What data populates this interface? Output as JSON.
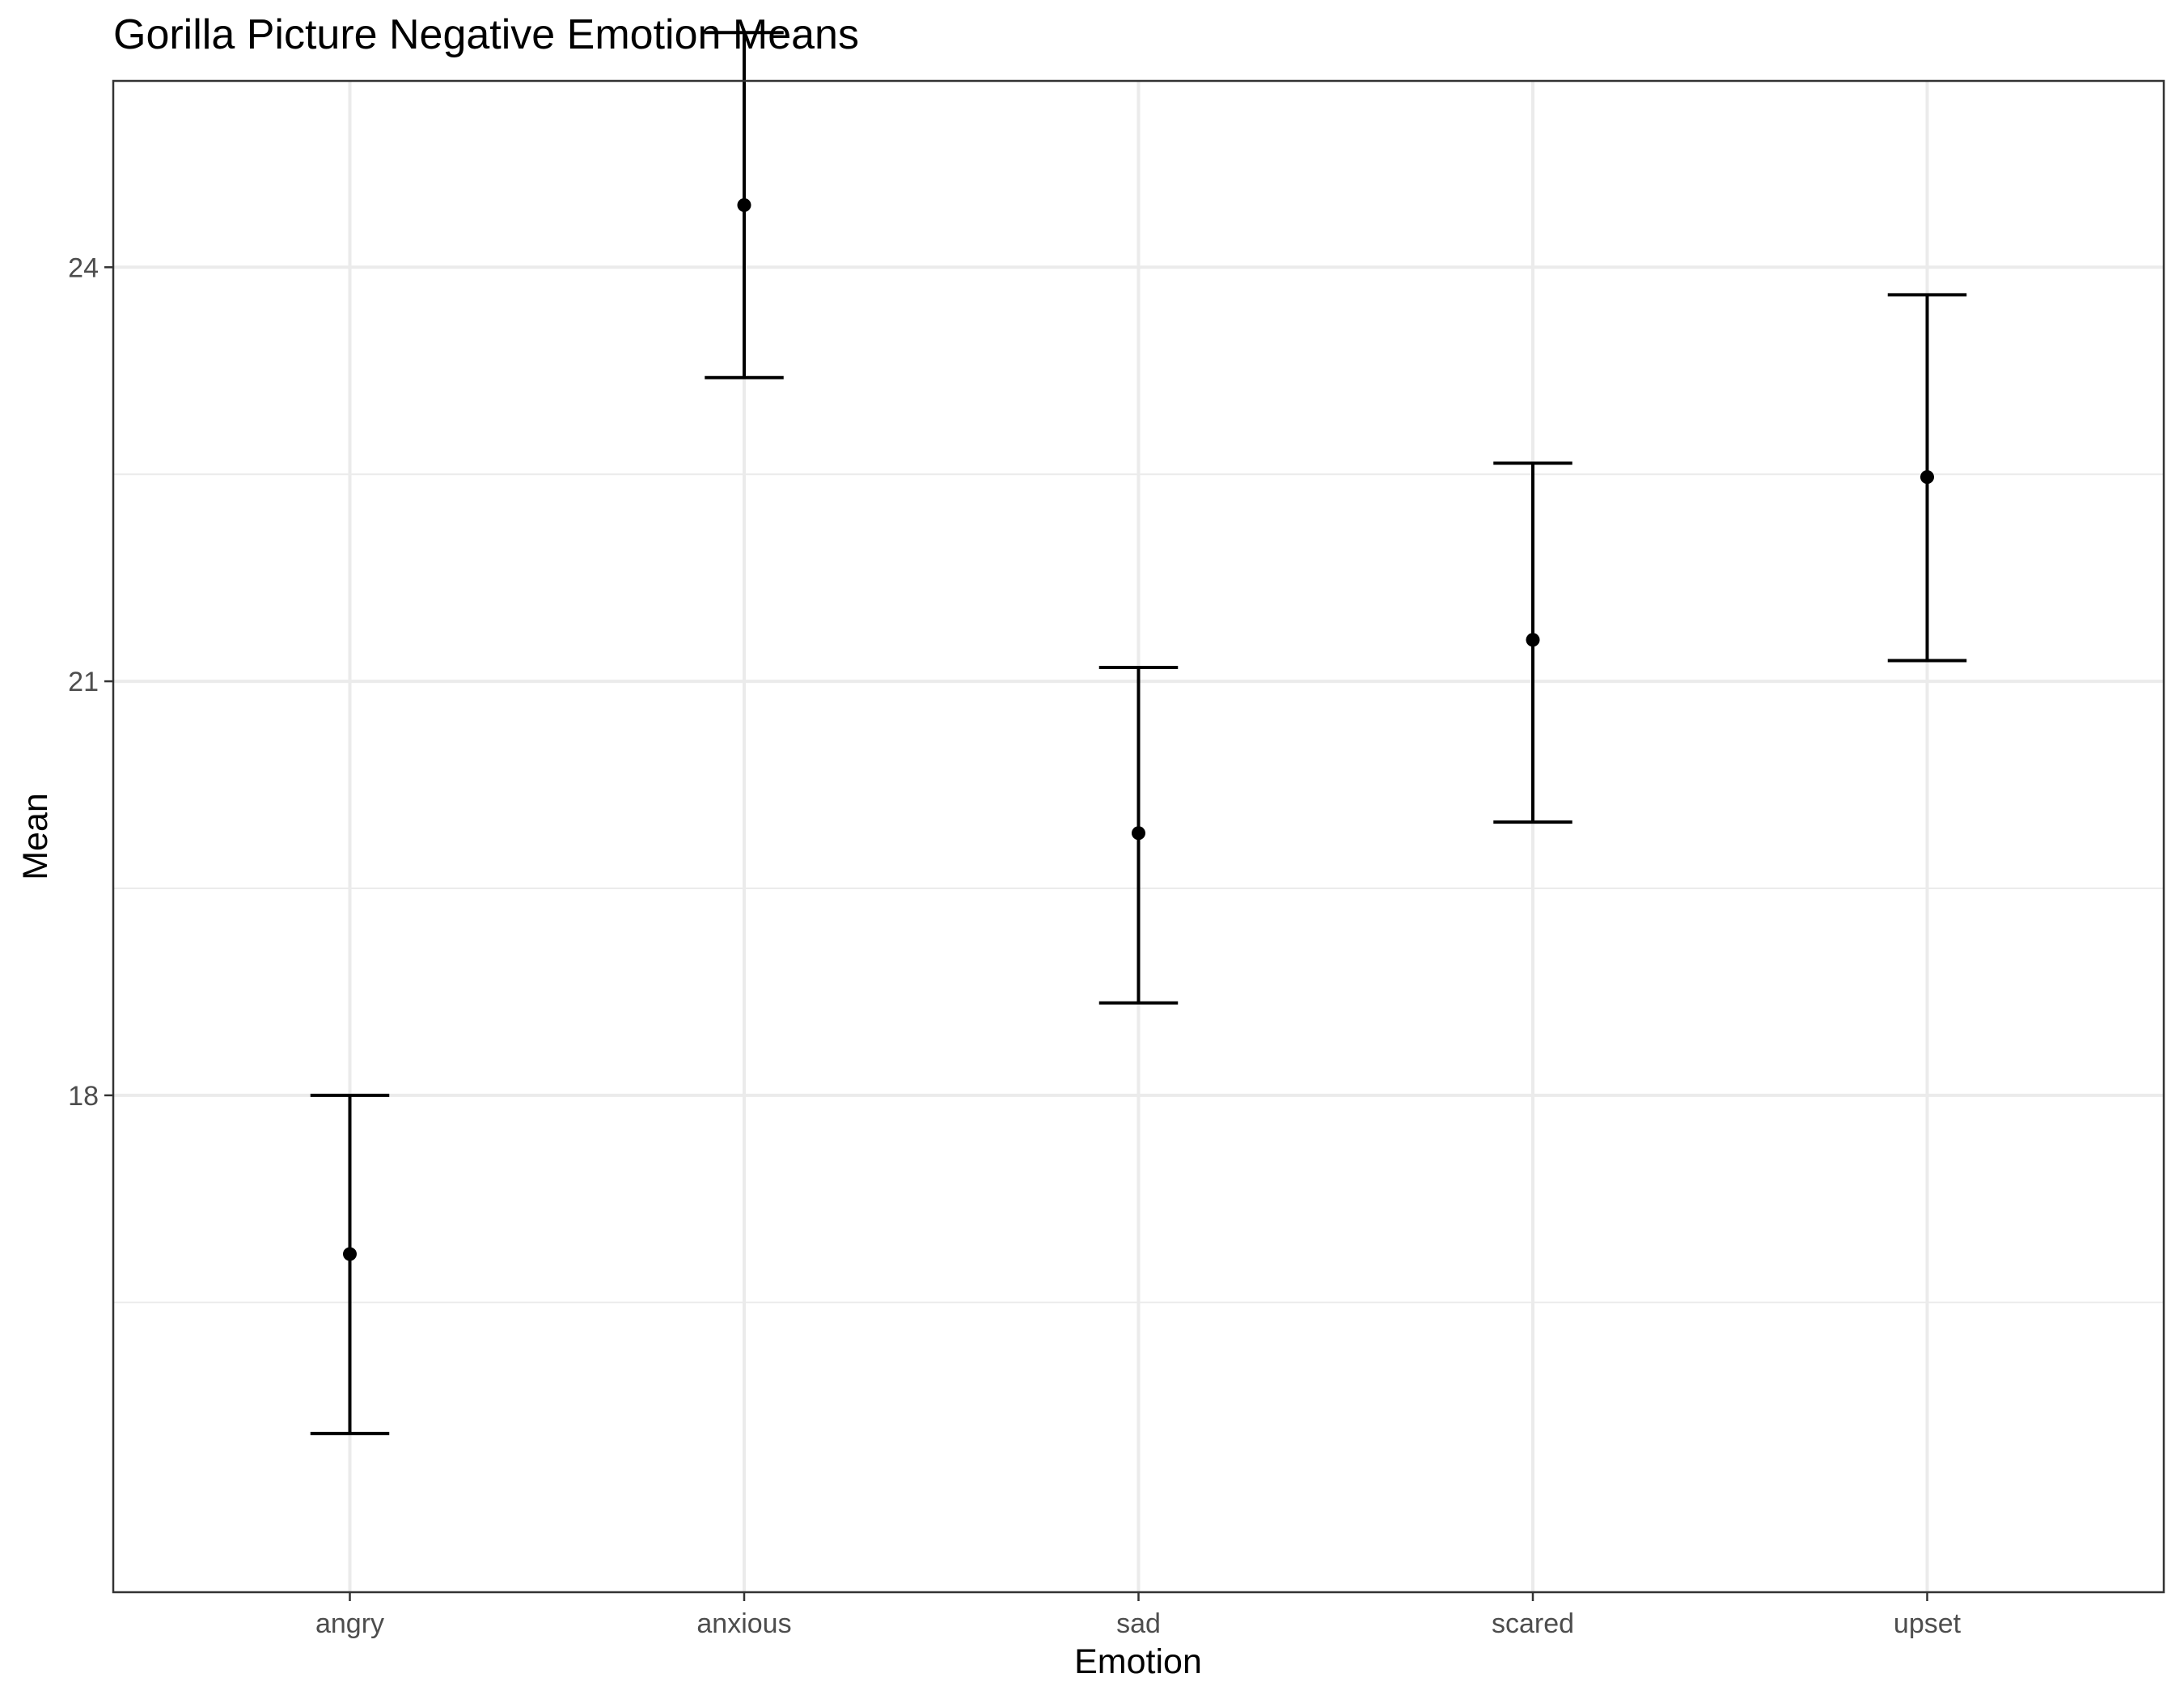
{
  "chart_data": {
    "type": "scatter",
    "title": "Gorilla Picture Negative Emotion Means",
    "xlabel": "Emotion",
    "ylabel": "Mean",
    "categories": [
      "angry",
      "anxious",
      "sad",
      "scared",
      "upset"
    ],
    "series": [
      {
        "values": [
          16.85,
          24.45,
          19.9,
          21.3,
          22.48
        ],
        "error_lower": [
          15.55,
          23.2,
          18.67,
          19.98,
          21.15
        ],
        "error_upper": [
          18.0,
          25.7,
          21.1,
          22.58,
          23.8
        ]
      }
    ],
    "ylim": [
      14.4,
      25.35
    ],
    "y_ticks": [
      18,
      21,
      24
    ],
    "grid": true,
    "legend": "none",
    "colors": {
      "points": "#000000",
      "grid": "#ebebeb",
      "panel_border": "#333333",
      "tick_labels": "#4d4d4d"
    }
  }
}
